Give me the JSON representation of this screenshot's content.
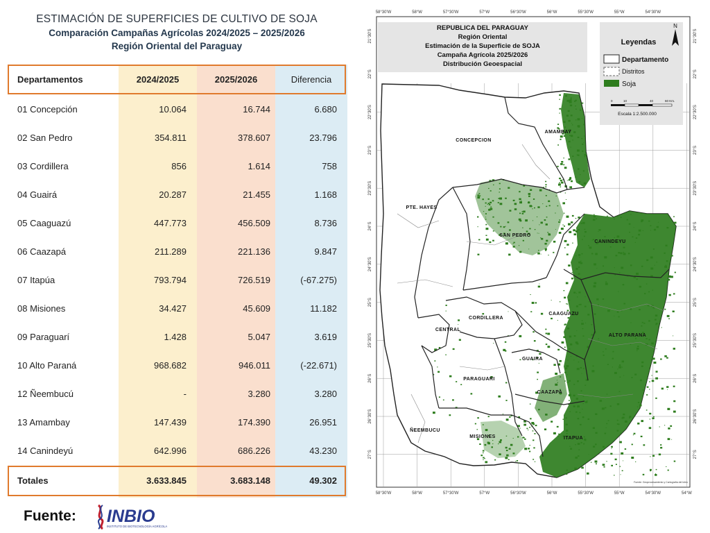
{
  "title": {
    "main": "ESTIMACIÓN DE SUPERFICIES DE CULTIVO DE SOJA",
    "subtitle": "Comparación Campañas Agrícolas 2024/2025 – 2025/2026",
    "region": "Región Oriental del Paraguay"
  },
  "table": {
    "headers": {
      "department": "Departamentos",
      "campaign_a": "2024/2025",
      "campaign_b": "2025/2026",
      "difference": "Diferencia"
    },
    "rows": [
      {
        "department": "01 Concepción",
        "a": "10.064",
        "b": "16.744",
        "diff": "6.680"
      },
      {
        "department": "02 San Pedro",
        "a": "354.811",
        "b": "378.607",
        "diff": "23.796"
      },
      {
        "department": "03 Cordillera",
        "a": "856",
        "b": "1.614",
        "diff": "758"
      },
      {
        "department": "04 Guairá",
        "a": "20.287",
        "b": "21.455",
        "diff": "1.168"
      },
      {
        "department": "05 Caaguazú",
        "a": "447.773",
        "b": "456.509",
        "diff": "8.736"
      },
      {
        "department": "06 Caazapá",
        "a": "211.289",
        "b": "221.136",
        "diff": "9.847"
      },
      {
        "department": "07 Itapúa",
        "a": "793.794",
        "b": "726.519",
        "diff": "(-67.275)"
      },
      {
        "department": "08 Misiones",
        "a": "34.427",
        "b": "45.609",
        "diff": "11.182"
      },
      {
        "department": "09 Paraguarí",
        "a": "1.428",
        "b": "5.047",
        "diff": "3.619"
      },
      {
        "department": "10 Alto Paraná",
        "a": "968.682",
        "b": "946.011",
        "diff": "(-22.671)"
      },
      {
        "department": "12 Ñeembucú",
        "a": "-",
        "b": "3.280",
        "diff": "3.280"
      },
      {
        "department": "13 Amambay",
        "a": "147.439",
        "b": "174.390",
        "diff": "26.951"
      },
      {
        "department": "14 Canindeyú",
        "a": "642.996",
        "b": "686.226",
        "diff": "43.230"
      }
    ],
    "total": {
      "label": "Totales",
      "a": "3.633.845",
      "b": "3.683.148",
      "diff": "49.302"
    }
  },
  "source": {
    "label": "Fuente:",
    "logo_text": "INBIO",
    "logo_subtext": "INSTITUTO DE BIOTECNOLOGÍA AGRÍCOLA"
  },
  "map": {
    "title_lines": [
      "REPUBLICA DEL PARAGUAY",
      "Región Oriental",
      "Estimación de la Superficie de SOJA",
      "Campaña Agrícola 2025/2026",
      "Distribución Geoespacial"
    ],
    "legend": {
      "title": "Leyendas",
      "items": [
        "Departamento",
        "Distritos",
        "Soja"
      ],
      "scale_label": "Escala 1:2.500.000",
      "scale_ticks": [
        "0",
        "10",
        "40",
        "60 Km."
      ],
      "north": "N"
    },
    "departments": [
      "CONCEPCION",
      "AMAMBAY",
      "PTE. HAYES",
      "SAN PEDRO",
      "CANINDEYU",
      "CORDILLERA",
      "CAAGUAZU",
      "CENTRAL",
      "ALTO PARANA",
      "GUAIRA",
      "PARAGUARI",
      "CAAZAPA",
      "ÑEEMBUCU",
      "MISIONES",
      "ITAPUA"
    ],
    "lon_ticks": [
      "58°30'W",
      "58°W",
      "57°30'W",
      "57°W",
      "56°30'W",
      "56°W",
      "55°30'W",
      "55°W",
      "54°30'W"
    ],
    "lon_ticks_bottom": [
      "58°30'W",
      "58°W",
      "57°30'W",
      "57°W",
      "56°30'W",
      "56°W",
      "55°30'W",
      "55°W",
      "54°30'W",
      "54°W"
    ],
    "lat_ticks": [
      "21°30'S",
      "22°S",
      "22°30'S",
      "23°S",
      "23°30'S",
      "24°S",
      "24°30'S",
      "25°S",
      "25°30'S",
      "26°S",
      "26°30'S",
      "27°S"
    ],
    "credit": "Fuente: Geoprocesamiento y Cartografía del Inbio",
    "colors": {
      "soy": "#2e7d1e",
      "department_line": "#222222",
      "district_line": "#888888"
    }
  }
}
